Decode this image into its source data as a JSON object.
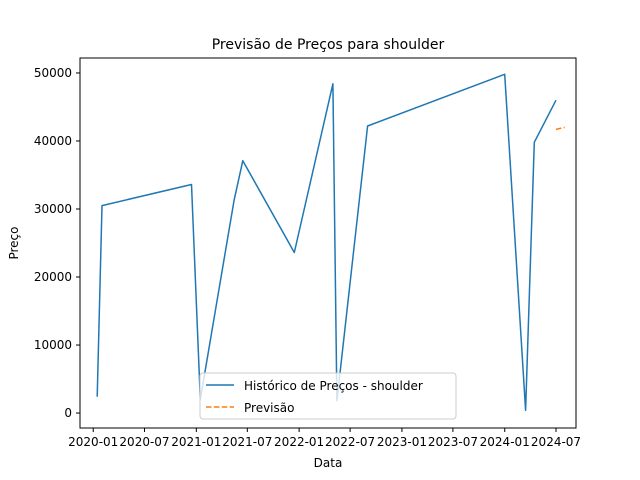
{
  "chart_data": {
    "type": "line",
    "title": "Previsão de Preços para shoulder",
    "xlabel": "Data",
    "ylabel": "Preço",
    "x_axis": {
      "type": "date",
      "range": [
        "2019-11-15",
        "2024-09-10"
      ],
      "ticks": [
        "2020-01-01",
        "2020-07-01",
        "2021-01-01",
        "2021-07-01",
        "2022-01-01",
        "2022-07-01",
        "2023-01-01",
        "2023-07-01",
        "2024-01-01",
        "2024-07-01"
      ],
      "tick_labels": [
        "2020-01",
        "2020-07",
        "2021-01",
        "2021-07",
        "2022-01",
        "2022-07",
        "2023-01",
        "2023-07",
        "2024-01",
        "2024-07"
      ]
    },
    "y_axis": {
      "range": [
        -2200,
        52200
      ],
      "ticks": [
        0,
        10000,
        20000,
        30000,
        40000,
        50000
      ],
      "tick_labels": [
        "0",
        "10000",
        "20000",
        "30000",
        "40000",
        "50000"
      ]
    },
    "grid": false,
    "legend_position": "bottom-center",
    "series": [
      {
        "name": "Histórico de Preços - shoulder",
        "color": "#1f77b4",
        "style": "solid",
        "x": [
          "2020-01-15",
          "2020-02-01",
          "2020-12-15",
          "2021-01-15",
          "2021-05-15",
          "2021-06-15",
          "2021-12-15",
          "2022-05-01",
          "2022-05-15",
          "2022-09-01",
          "2024-01-01",
          "2024-03-15",
          "2024-04-15",
          "2024-07-01"
        ],
        "y": [
          2400,
          30500,
          33600,
          2000,
          31300,
          37100,
          23600,
          48400,
          1800,
          42200,
          49800,
          400,
          39800,
          46000
        ]
      },
      {
        "name": "Previsão",
        "color": "#ff7f0e",
        "style": "dashed",
        "x": [
          "2024-07-01",
          "2024-08-01"
        ],
        "y": [
          41700,
          42000
        ]
      }
    ]
  }
}
